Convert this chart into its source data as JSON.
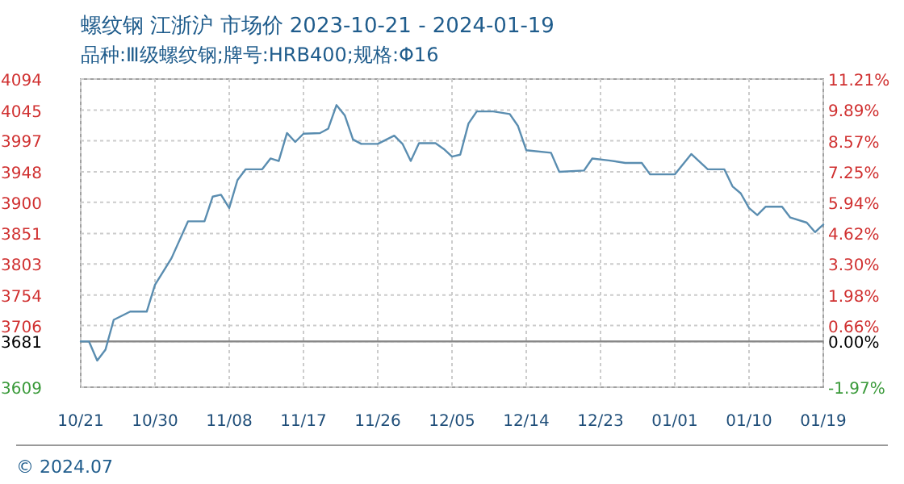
{
  "chart_data": {
    "type": "line",
    "title": "螺纹钢 江浙沪 市场价 2023-10-21 - 2024-01-19",
    "subtitle": "品种:Ⅲ级螺纹钢;牌号:HRB400;规格:Φ16",
    "annotations": [
      "© 2024.07"
    ],
    "x": [
      "2023-10-21",
      "2023-10-22",
      "2023-10-23",
      "2023-10-24",
      "2023-10-25",
      "2023-10-27",
      "2023-10-29",
      "2023-10-30",
      "2023-11-01",
      "2023-11-03",
      "2023-11-05",
      "2023-11-06",
      "2023-11-07",
      "2023-11-08",
      "2023-11-09",
      "2023-11-10",
      "2023-11-12",
      "2023-11-13",
      "2023-11-14",
      "2023-11-15",
      "2023-11-16",
      "2023-11-17",
      "2023-11-19",
      "2023-11-20",
      "2023-11-21",
      "2023-11-22",
      "2023-11-23",
      "2023-11-24",
      "2023-11-26",
      "2023-11-28",
      "2023-11-29",
      "2023-11-30",
      "2023-12-01",
      "2023-12-03",
      "2023-12-04",
      "2023-12-05",
      "2023-12-06",
      "2023-12-07",
      "2023-12-08",
      "2023-12-10",
      "2023-12-12",
      "2023-12-13",
      "2023-12-14",
      "2023-12-17",
      "2023-12-18",
      "2023-12-21",
      "2023-12-22",
      "2023-12-24",
      "2023-12-26",
      "2023-12-28",
      "2023-12-29",
      "2024-01-01",
      "2024-01-03",
      "2024-01-05",
      "2024-01-07",
      "2024-01-08",
      "2024-01-09",
      "2024-01-10",
      "2024-01-11",
      "2024-01-12",
      "2024-01-14",
      "2024-01-15",
      "2024-01-17",
      "2024-01-18",
      "2024-01-19"
    ],
    "series": [
      {
        "color": "#5a8db0",
        "values": [
          3681,
          3681,
          3651,
          3668,
          3715,
          3728,
          3728,
          3770,
          3812,
          3870,
          3870,
          3909,
          3912,
          3891,
          3935,
          3952,
          3952,
          3969,
          3965,
          4009,
          3995,
          4008,
          4009,
          4016,
          4053,
          4037,
          3999,
          3992,
          3992,
          4005,
          3992,
          3965,
          3993,
          3993,
          3984,
          3972,
          3975,
          4024,
          4043,
          4043,
          4039,
          4020,
          3982,
          3978,
          3948,
          3950,
          3969,
          3966,
          3962,
          3962,
          3944,
          3944,
          3976,
          3952,
          3952,
          3925,
          3914,
          3891,
          3880,
          3893,
          3893,
          3876,
          3868,
          3853,
          3865
        ]
      }
    ],
    "xlim": [
      "2023-10-21",
      "2024-01-19"
    ],
    "xticks": [
      {
        "value": "2023-10-21",
        "label": "10/21"
      },
      {
        "value": "2023-10-30",
        "label": "10/30"
      },
      {
        "value": "2023-11-08",
        "label": "11/08"
      },
      {
        "value": "2023-11-17",
        "label": "11/17"
      },
      {
        "value": "2023-11-26",
        "label": "11/26"
      },
      {
        "value": "2023-12-05",
        "label": "12/05"
      },
      {
        "value": "2023-12-14",
        "label": "12/14"
      },
      {
        "value": "2023-12-23",
        "label": "12/23"
      },
      {
        "value": "2024-01-01",
        "label": "01/01"
      },
      {
        "value": "2024-01-10",
        "label": "01/10"
      },
      {
        "value": "2024-01-19",
        "label": "01/19"
      }
    ],
    "ylim": [
      3609,
      4094
    ],
    "yticks": [
      3609,
      3681,
      3706,
      3754,
      3803,
      3851,
      3900,
      3948,
      3997,
      4045,
      4094
    ],
    "y2lim": [
      -1.97,
      11.21
    ],
    "y2ticks": [
      {
        "value": -1.97,
        "label": "-1.97%"
      },
      {
        "value": 0,
        "label": "0.00%"
      },
      {
        "value": 0.66,
        "label": "0.66%"
      },
      {
        "value": 1.98,
        "label": "1.98%"
      },
      {
        "value": 3.3,
        "label": "3.30%"
      },
      {
        "value": 4.62,
        "label": "4.62%"
      },
      {
        "value": 5.94,
        "label": "5.94%"
      },
      {
        "value": 7.25,
        "label": "7.25%"
      },
      {
        "value": 8.57,
        "label": "8.57%"
      },
      {
        "value": 9.89,
        "label": "9.89%"
      },
      {
        "value": 11.21,
        "label": "11.21%"
      }
    ],
    "ref_lines": [
      {
        "axis": "y",
        "value": 3681,
        "color": "#888888"
      }
    ],
    "grid": true
  }
}
